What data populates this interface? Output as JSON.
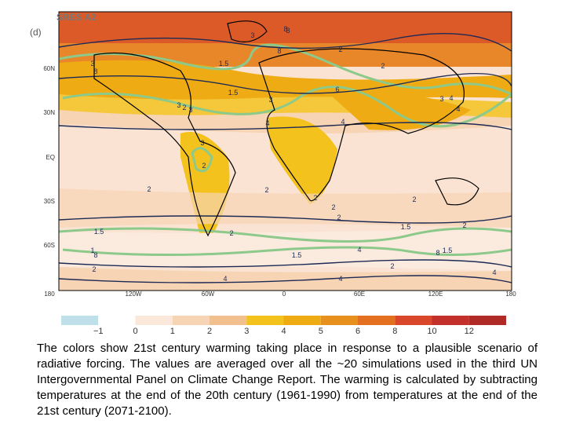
{
  "map": {
    "title": "SRES A2",
    "panel": "(d)",
    "lat_labels": [
      "60N",
      "30N",
      "EQ",
      "30S",
      "60S"
    ],
    "lon_labels": [
      "180",
      "120W",
      "60W",
      "0",
      "60E",
      "120E",
      "180"
    ],
    "contour_labels": [
      "8",
      "3",
      "8",
      "2",
      "3",
      "8",
      "1.5",
      "2",
      "2",
      "6",
      "1.5",
      "3",
      "3",
      "3",
      "4",
      "4",
      "4",
      "3",
      "2",
      "2",
      "2",
      "2",
      "2",
      "4",
      "2",
      "2",
      "1.5",
      "2",
      "1.5",
      "1",
      "8",
      "2",
      "2",
      "1.5",
      "4",
      "4",
      "4",
      "2",
      "1.5",
      "8",
      "4",
      "3",
      "8"
    ]
  },
  "colorbar": {
    "labels": [
      "−1",
      "0",
      "1",
      "2",
      "3",
      "4",
      "5",
      "6",
      "8",
      "10",
      "12"
    ],
    "colors": [
      "#bfe0ea",
      "#ffffff",
      "#fbe8da",
      "#f7d4b4",
      "#f2c08f",
      "#f4c21c",
      "#eeab13",
      "#e8901e",
      "#e36f20",
      "#d9462a",
      "#c4302b",
      "#b02a28"
    ]
  },
  "caption": "The colors show 21st century warming taking place in response to a plausible scenario of radiative forcing.  The values are averaged over all the ~20 simulations used in the third UN Intergovernmental Panel on Climate Change Report. The warming is calculated by subtracting temperatures at the end of the 20th century (1961-1990) from temperatures at the end of the 21st century (2071-2100)."
}
